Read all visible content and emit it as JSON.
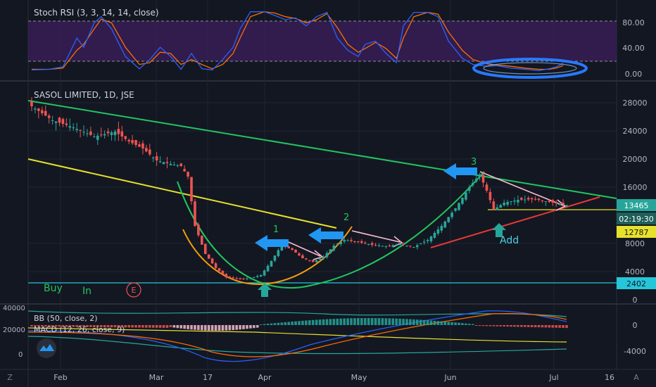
{
  "colors": {
    "background": "#131722",
    "grid": "#1f2433",
    "axis_text": "#b2b5be",
    "up": "#26a69a",
    "down": "#ef5350",
    "stoch_k": "#2962ff",
    "stoch_d": "#ff6d00",
    "stoch_band": "#3c1f5c"
  },
  "stoch_panel": {
    "title": "Stoch RSI (3, 3, 14, 14, close)",
    "ticks": [
      "80.00",
      "40.00",
      "0.00"
    ]
  },
  "main_panel": {
    "title": "SASOL LIMITED, 1D, JSE",
    "ticks": [
      "28000",
      "24000",
      "20000",
      "16000",
      "12000",
      "8000",
      "4000",
      "0"
    ],
    "price_tags": {
      "last": "13465",
      "countdown": "02:19:30",
      "level": "12787",
      "support": "2402"
    },
    "annotations": {
      "buy": "Buy",
      "in": "In",
      "earnings": "E",
      "n1": "1",
      "n2": "2",
      "n3": "3",
      "add": "Add"
    }
  },
  "lower_panel": {
    "bb_title": "BB (50, close, 2)",
    "macd_title": "MACD (12, 26, close, 9)",
    "left_ticks": [
      "40000",
      "20000",
      "0"
    ],
    "right_ticks": [
      "0",
      "-4000"
    ]
  },
  "x_axis": {
    "labels": [
      "Feb",
      "Mar",
      "17",
      "Apr",
      "May",
      "Jun",
      "Jul",
      "16"
    ]
  },
  "corner_icons": [
    "Z",
    "A"
  ],
  "chart_data": {
    "type": "candlestick",
    "title": "SASOL LIMITED, 1D, JSE",
    "x_ticks": [
      "Feb",
      "Mar",
      "17",
      "Apr",
      "May",
      "Jun",
      "Jul",
      "16"
    ],
    "y_ticks": [
      0,
      4000,
      8000,
      12000,
      16000,
      20000,
      24000,
      28000
    ],
    "ylim": [
      0,
      29000
    ],
    "price_path": [
      [
        0,
        27500
      ],
      [
        6,
        25500
      ],
      [
        12,
        24500
      ],
      [
        18,
        23200
      ],
      [
        24,
        23900
      ],
      [
        28,
        22500
      ],
      [
        32,
        21500
      ],
      [
        36,
        19800
      ],
      [
        40,
        19300
      ],
      [
        43,
        19000
      ],
      [
        45,
        17500
      ],
      [
        47,
        10500
      ],
      [
        50,
        6500
      ],
      [
        53,
        4500
      ],
      [
        56,
        3200
      ],
      [
        60,
        2900
      ],
      [
        63,
        3100
      ],
      [
        66,
        3500
      ],
      [
        69,
        5500
      ],
      [
        72,
        7800
      ],
      [
        75,
        7100
      ],
      [
        78,
        5900
      ],
      [
        81,
        5400
      ],
      [
        84,
        6100
      ],
      [
        87,
        7700
      ],
      [
        90,
        8500
      ],
      [
        94,
        8200
      ],
      [
        98,
        7800
      ],
      [
        102,
        7600
      ],
      [
        106,
        7900
      ],
      [
        110,
        7500
      ],
      [
        114,
        8500
      ],
      [
        118,
        10500
      ],
      [
        122,
        13000
      ],
      [
        126,
        16000
      ],
      [
        129,
        17800
      ],
      [
        131,
        15500
      ],
      [
        133,
        12800
      ],
      [
        136,
        13800
      ],
      [
        140,
        14200
      ],
      [
        145,
        14300
      ],
      [
        150,
        13800
      ],
      [
        154,
        13465
      ]
    ],
    "last_price": 13465,
    "marked_levels": [
      12787,
      2402
    ],
    "stoch_rsi": {
      "ylim": [
        0,
        100
      ],
      "y_ticks": [
        0,
        40,
        80
      ],
      "band": [
        20,
        80
      ],
      "k": [
        [
          0,
          3
        ],
        [
          5,
          4
        ],
        [
          9,
          8
        ],
        [
          13,
          55
        ],
        [
          15,
          40
        ],
        [
          18,
          80
        ],
        [
          20,
          90
        ],
        [
          23,
          70
        ],
        [
          27,
          25
        ],
        [
          31,
          5
        ],
        [
          34,
          20
        ],
        [
          37,
          40
        ],
        [
          40,
          25
        ],
        [
          43,
          4
        ],
        [
          46,
          30
        ],
        [
          49,
          5
        ],
        [
          52,
          3
        ],
        [
          55,
          20
        ],
        [
          58,
          40
        ],
        [
          60,
          70
        ],
        [
          63,
          98
        ],
        [
          67,
          98
        ],
        [
          70,
          92
        ],
        [
          73,
          85
        ],
        [
          76,
          88
        ],
        [
          79,
          75
        ],
        [
          82,
          90
        ],
        [
          85,
          97
        ],
        [
          88,
          55
        ],
        [
          91,
          35
        ],
        [
          94,
          25
        ],
        [
          96,
          45
        ],
        [
          99,
          50
        ],
        [
          102,
          30
        ],
        [
          105,
          15
        ],
        [
          107,
          75
        ],
        [
          110,
          97
        ],
        [
          114,
          97
        ],
        [
          117,
          90
        ],
        [
          120,
          50
        ],
        [
          124,
          22
        ],
        [
          127,
          12
        ],
        [
          131,
          9
        ],
        [
          134,
          10
        ],
        [
          138,
          6
        ],
        [
          142,
          4
        ],
        [
          146,
          2
        ],
        [
          149,
          5
        ],
        [
          151,
          8
        ],
        [
          153,
          14
        ]
      ],
      "d": [
        [
          0,
          4
        ],
        [
          5,
          4
        ],
        [
          9,
          6
        ],
        [
          13,
          35
        ],
        [
          15,
          45
        ],
        [
          18,
          70
        ],
        [
          20,
          86
        ],
        [
          23,
          80
        ],
        [
          27,
          40
        ],
        [
          31,
          12
        ],
        [
          34,
          15
        ],
        [
          37,
          32
        ],
        [
          40,
          30
        ],
        [
          43,
          12
        ],
        [
          46,
          20
        ],
        [
          49,
          12
        ],
        [
          52,
          5
        ],
        [
          55,
          12
        ],
        [
          58,
          30
        ],
        [
          60,
          55
        ],
        [
          63,
          90
        ],
        [
          67,
          98
        ],
        [
          70,
          96
        ],
        [
          73,
          90
        ],
        [
          76,
          87
        ],
        [
          79,
          80
        ],
        [
          82,
          85
        ],
        [
          85,
          95
        ],
        [
          88,
          72
        ],
        [
          91,
          45
        ],
        [
          94,
          32
        ],
        [
          96,
          38
        ],
        [
          99,
          48
        ],
        [
          102,
          38
        ],
        [
          105,
          22
        ],
        [
          107,
          55
        ],
        [
          110,
          90
        ],
        [
          114,
          97
        ],
        [
          117,
          94
        ],
        [
          120,
          65
        ],
        [
          124,
          35
        ],
        [
          127,
          20
        ],
        [
          131,
          13
        ],
        [
          134,
          11
        ],
        [
          138,
          9
        ],
        [
          142,
          6
        ],
        [
          146,
          4
        ],
        [
          149,
          4
        ],
        [
          151,
          6
        ],
        [
          153,
          10
        ]
      ]
    }
  }
}
